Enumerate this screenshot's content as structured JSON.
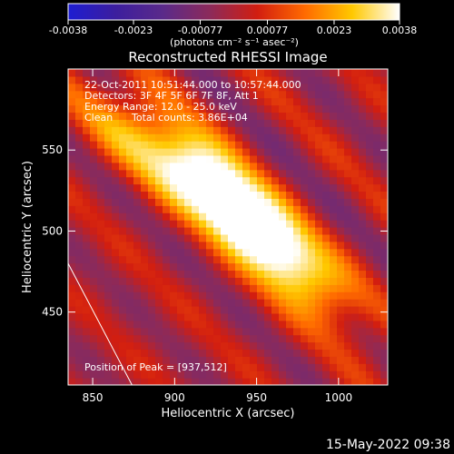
{
  "chart_data": {
    "type": "heatmap",
    "title": "Reconstructed RHESSI Image",
    "xlabel": "Heliocentric X (arcsec)",
    "ylabel": "Heliocentric Y (arcsec)",
    "xlim": [
      835,
      1030
    ],
    "ylim": [
      405,
      600
    ],
    "x_ticks": [
      850,
      900,
      950,
      1000
    ],
    "y_ticks": [
      450,
      500,
      550
    ],
    "colorbar": {
      "min": -0.0038,
      "max": 0.0038,
      "tick_values": [
        -0.0038,
        -0.0023,
        -0.00077,
        0.00077,
        0.0023,
        0.0038
      ],
      "tick_labels": [
        "-0.0038",
        "-0.0023",
        "-0.00077",
        "0.00077",
        "0.0023",
        "0.0038"
      ],
      "unit_label": "(photons cm⁻² s⁻¹ asec⁻²)",
      "colormap": [
        "#1e1ed2",
        "#3c1e9e",
        "#5a2a8a",
        "#8c2a5a",
        "#d21e10",
        "#ff6a00",
        "#ffc800",
        "#ffffff"
      ]
    },
    "annotations": {
      "time_range": "22-Oct-2011 10:51:44.000 to 10:57:44.000",
      "detectors": "Detectors: 3F 4F 5F 6F 7F 8F, Att 1",
      "energy_range": "Energy Range: 12.0 - 25.0 keV",
      "method": "Clean",
      "total_counts": "Total counts: 3.86E+04",
      "peak": "Position of Peak = [937,512]"
    },
    "peak": {
      "x": 937,
      "y": 512
    },
    "limb_line": [
      [
        835,
        480
      ],
      [
        874,
        405
      ]
    ],
    "source_components": [
      {
        "x": 938,
        "y": 514,
        "amplitude": 0.0038
      },
      {
        "x": 972,
        "y": 480,
        "amplitude": 0.003
      },
      {
        "x": 905,
        "y": 545,
        "amplitude": 0.0024
      },
      {
        "x": 870,
        "y": 555,
        "amplitude": 0.0012
      }
    ]
  },
  "footer": {
    "timestamp": "15-May-2022 09:38"
  }
}
